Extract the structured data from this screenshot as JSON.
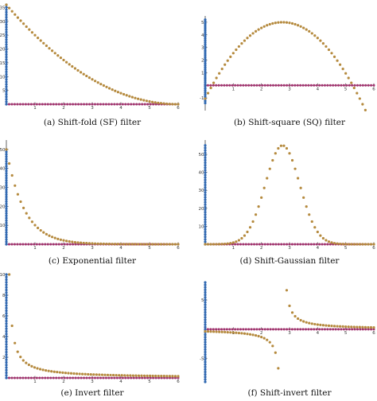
{
  "colors": {
    "brown": "#b58a3e",
    "blue": "#2e67b1",
    "magenta": "#a3306e",
    "axis": "#222222",
    "text": "#111111"
  },
  "chart_data": [
    {
      "type": "scatter",
      "function": "shift-fold",
      "title": "(a) Shift-fold (SF) filter",
      "xlim": [
        0,
        6
      ],
      "ylim": [
        0,
        36
      ],
      "x_ticks": [
        "1",
        "2",
        "3",
        "4",
        "5",
        "6"
      ],
      "y_ticks": [
        "5",
        "10",
        "15",
        "20",
        "25",
        "30",
        "35"
      ],
      "y_tick_values": [
        5,
        10,
        15,
        20,
        25,
        30,
        35
      ],
      "shift": 6,
      "series": [
        {
          "description": "filter points",
          "x_range": [
            0,
            6
          ],
          "n": 60,
          "formula": "(x - 6)^2"
        },
        {
          "description": "eigenvalues on y-axis",
          "x": 0,
          "y_range": [
            0,
            36
          ]
        },
        {
          "description": "spectrum on x-axis",
          "y": 0,
          "x_range": [
            0,
            6
          ]
        }
      ]
    },
    {
      "type": "scatter",
      "function": "shift-square",
      "title": "(b) Shift-square (SQ) filter",
      "xlim": [
        0,
        6
      ],
      "ylim": [
        -2,
        5.5
      ],
      "x_ticks": [
        "1",
        "2",
        "3",
        "4",
        "5",
        "6"
      ],
      "y_ticks": [
        "-1",
        "1",
        "2",
        "3",
        "4",
        "5"
      ],
      "y_tick_values": [
        -1,
        1,
        2,
        3,
        4,
        5
      ],
      "shift": 2.75,
      "series": [
        {
          "description": "filter points",
          "x_range": [
            0,
            6
          ],
          "n": 60,
          "formula": "5 - 0.8*(x - 2.75)^2"
        },
        {
          "description": "eigenvalues on y-axis",
          "x": 0,
          "y_range": [
            -1.4,
            5.2
          ]
        },
        {
          "description": "spectrum on x-axis",
          "y": 0,
          "x_range": [
            0,
            6
          ]
        }
      ]
    },
    {
      "type": "scatter",
      "function": "exponential",
      "title": "(c) Exponential filter",
      "xlim": [
        0,
        6
      ],
      "ylim": [
        0,
        55
      ],
      "x_ticks": [
        "1",
        "2",
        "3",
        "4",
        "5",
        "6"
      ],
      "y_ticks": [
        "10",
        "20",
        "30",
        "40",
        "50"
      ],
      "y_tick_values": [
        10,
        20,
        30,
        40,
        50
      ],
      "series": [
        {
          "description": "filter points",
          "x_range": [
            0,
            6
          ],
          "n": 60,
          "formula": "50*exp(-1.6x)"
        },
        {
          "description": "eigenvalues on y-axis",
          "x": 0,
          "y_range": [
            0,
            50
          ]
        },
        {
          "description": "spectrum on x-axis",
          "y": 0,
          "x_range": [
            0,
            6
          ]
        }
      ]
    },
    {
      "type": "scatter",
      "function": "shift-gaussian",
      "title": "(d) Shift-Gaussian filter",
      "xlim": [
        0,
        6
      ],
      "ylim": [
        0,
        58
      ],
      "x_ticks": [
        "1",
        "2",
        "3",
        "4",
        "5",
        "6"
      ],
      "y_ticks": [
        "10",
        "20",
        "30",
        "40",
        "50"
      ],
      "y_tick_values": [
        10,
        20,
        30,
        40,
        50
      ],
      "shift": 2.75,
      "series": [
        {
          "description": "filter points",
          "x_range": [
            0,
            6
          ],
          "n": 60,
          "formula": "55*exp(-(x-2.75)^2 / 0.75)"
        },
        {
          "description": "eigenvalues on y-axis",
          "x": 0,
          "y_range": [
            0,
            55
          ]
        },
        {
          "description": "spectrum on x-axis",
          "y": 0,
          "x_range": [
            0,
            6
          ]
        }
      ]
    },
    {
      "type": "scatter",
      "function": "invert",
      "title": "(e) Invert filter",
      "xlim": [
        0,
        6
      ],
      "ylim": [
        0,
        10
      ],
      "x_ticks": [
        "1",
        "2",
        "3",
        "4",
        "5",
        "6"
      ],
      "y_ticks": [
        "2",
        "4",
        "6",
        "8",
        "10"
      ],
      "y_tick_values": [
        2,
        4,
        6,
        8,
        10
      ],
      "series": [
        {
          "description": "filter points",
          "x_range": [
            0.1,
            6
          ],
          "n": 60,
          "formula": "1/x"
        },
        {
          "description": "eigenvalues on y-axis",
          "x": 0,
          "y_range": [
            0,
            10
          ]
        },
        {
          "description": "spectrum on x-axis",
          "y": 0,
          "x_range": [
            0,
            6
          ]
        }
      ]
    },
    {
      "type": "scatter",
      "function": "shift-invert",
      "title": "(f) Shift-invert filter",
      "xlim": [
        0,
        6
      ],
      "ylim": [
        -9,
        8
      ],
      "x_ticks": [
        "1",
        "2",
        "3",
        "4",
        "5",
        "6"
      ],
      "y_ticks": [
        "-5",
        "5"
      ],
      "y_tick_values": [
        -5,
        5
      ],
      "shift": 2.75,
      "series": [
        {
          "description": "filter points",
          "x_range": [
            0,
            6
          ],
          "n": 60,
          "formula": "1/(x - 2.75)"
        },
        {
          "description": "eigenvalues on y-axis",
          "x": 0,
          "y_range": [
            -9,
            8
          ]
        },
        {
          "description": "spectrum on x-axis",
          "y": 0,
          "x_range": [
            0,
            6
          ]
        }
      ]
    }
  ]
}
